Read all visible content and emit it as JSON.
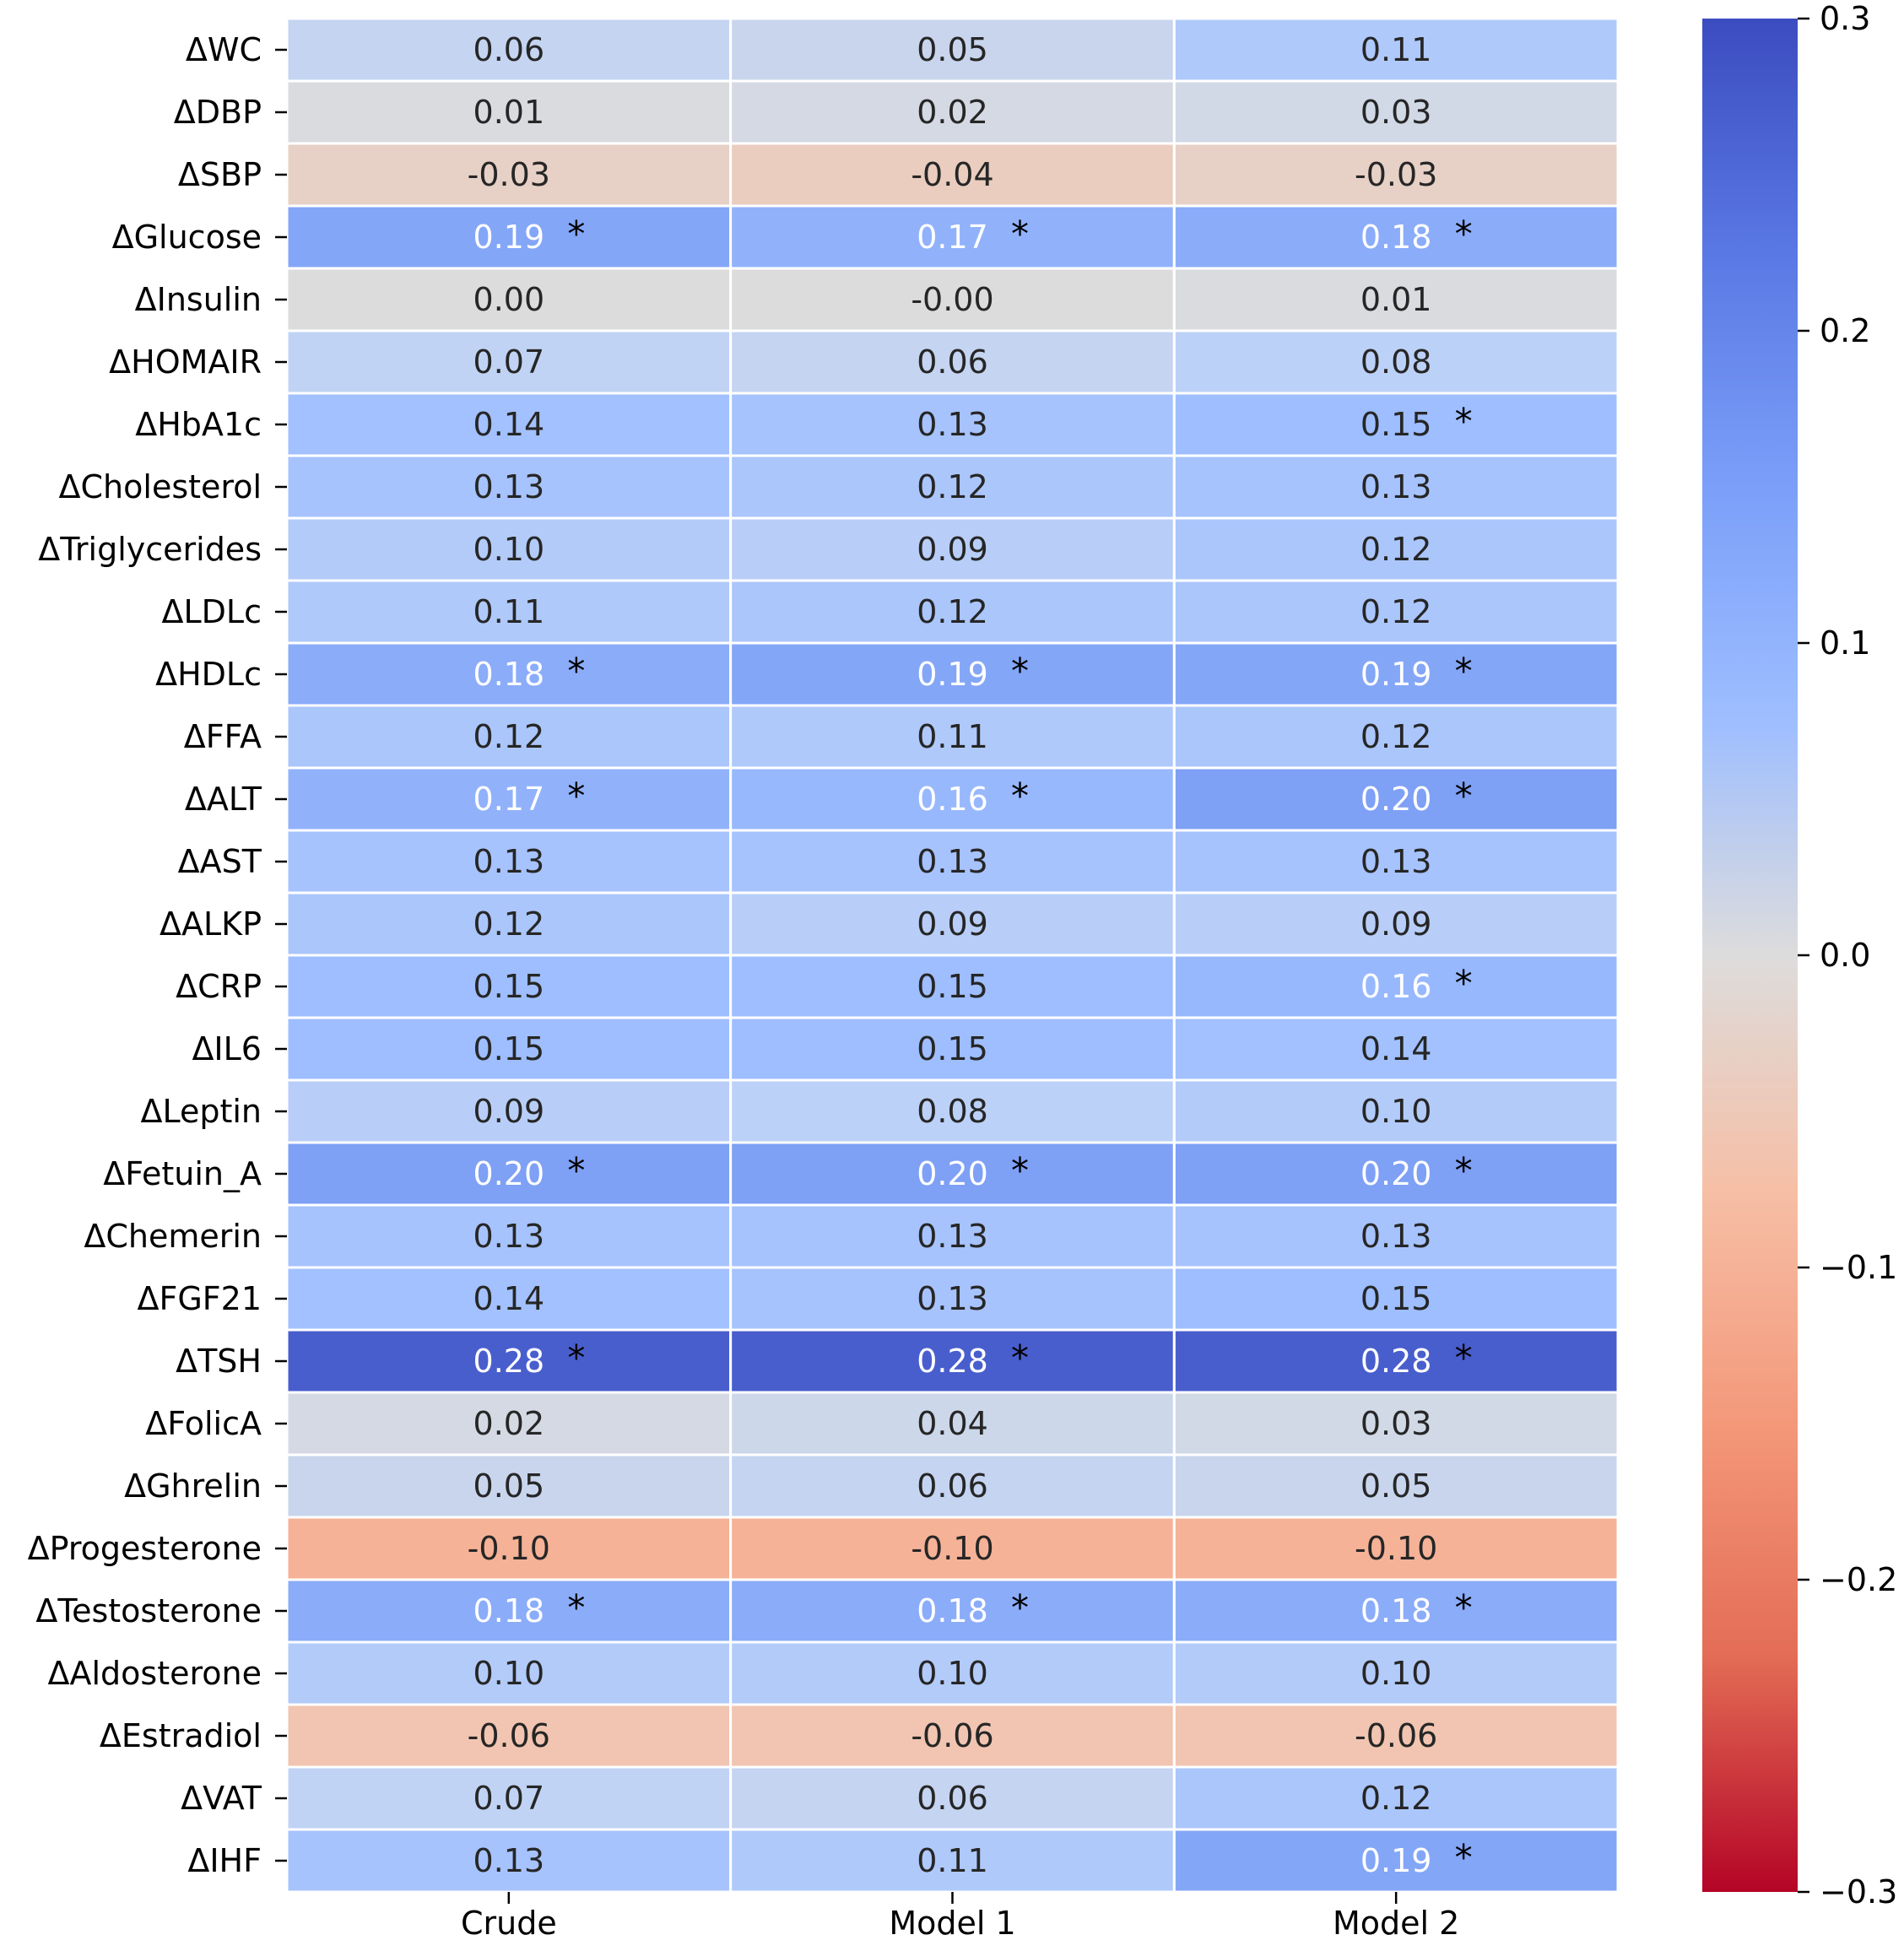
{
  "chart_data": {
    "type": "heatmap",
    "title": "",
    "xlabel": "",
    "ylabel": "",
    "columns": [
      "Crude",
      "Model 1",
      "Model 2"
    ],
    "rows": [
      {
        "label": "ΔWC",
        "values": [
          "0.06",
          "0.05",
          "0.11"
        ],
        "sig": [
          false,
          false,
          false
        ]
      },
      {
        "label": "ΔDBP",
        "values": [
          "0.01",
          "0.02",
          "0.03"
        ],
        "sig": [
          false,
          false,
          false
        ]
      },
      {
        "label": "ΔSBP",
        "values": [
          "-0.03",
          "-0.04",
          "-0.03"
        ],
        "sig": [
          false,
          false,
          false
        ]
      },
      {
        "label": "ΔGlucose",
        "values": [
          "0.19",
          "0.17",
          "0.18"
        ],
        "sig": [
          true,
          true,
          true
        ]
      },
      {
        "label": "ΔInsulin",
        "values": [
          "0.00",
          "-0.00",
          "0.01"
        ],
        "sig": [
          false,
          false,
          false
        ]
      },
      {
        "label": "ΔHOMAIR",
        "values": [
          "0.07",
          "0.06",
          "0.08"
        ],
        "sig": [
          false,
          false,
          false
        ]
      },
      {
        "label": "ΔHbA1c",
        "values": [
          "0.14",
          "0.13",
          "0.15"
        ],
        "sig": [
          false,
          false,
          true
        ]
      },
      {
        "label": "ΔCholesterol",
        "values": [
          "0.13",
          "0.12",
          "0.13"
        ],
        "sig": [
          false,
          false,
          false
        ]
      },
      {
        "label": "ΔTriglycerides",
        "values": [
          "0.10",
          "0.09",
          "0.12"
        ],
        "sig": [
          false,
          false,
          false
        ]
      },
      {
        "label": "ΔLDLc",
        "values": [
          "0.11",
          "0.12",
          "0.12"
        ],
        "sig": [
          false,
          false,
          false
        ]
      },
      {
        "label": "ΔHDLc",
        "values": [
          "0.18",
          "0.19",
          "0.19"
        ],
        "sig": [
          true,
          true,
          true
        ]
      },
      {
        "label": "ΔFFA",
        "values": [
          "0.12",
          "0.11",
          "0.12"
        ],
        "sig": [
          false,
          false,
          false
        ]
      },
      {
        "label": "ΔALT",
        "values": [
          "0.17",
          "0.16",
          "0.20"
        ],
        "sig": [
          true,
          true,
          true
        ]
      },
      {
        "label": "ΔAST",
        "values": [
          "0.13",
          "0.13",
          "0.13"
        ],
        "sig": [
          false,
          false,
          false
        ]
      },
      {
        "label": "ΔALKP",
        "values": [
          "0.12",
          "0.09",
          "0.09"
        ],
        "sig": [
          false,
          false,
          false
        ]
      },
      {
        "label": "ΔCRP",
        "values": [
          "0.15",
          "0.15",
          "0.16"
        ],
        "sig": [
          false,
          false,
          true
        ]
      },
      {
        "label": "ΔIL6",
        "values": [
          "0.15",
          "0.15",
          "0.14"
        ],
        "sig": [
          false,
          false,
          false
        ]
      },
      {
        "label": "ΔLeptin",
        "values": [
          "0.09",
          "0.08",
          "0.10"
        ],
        "sig": [
          false,
          false,
          false
        ]
      },
      {
        "label": "ΔFetuin_A",
        "values": [
          "0.20",
          "0.20",
          "0.20"
        ],
        "sig": [
          true,
          true,
          true
        ]
      },
      {
        "label": "ΔChemerin",
        "values": [
          "0.13",
          "0.13",
          "0.13"
        ],
        "sig": [
          false,
          false,
          false
        ]
      },
      {
        "label": "ΔFGF21",
        "values": [
          "0.14",
          "0.13",
          "0.15"
        ],
        "sig": [
          false,
          false,
          false
        ]
      },
      {
        "label": "ΔTSH",
        "values": [
          "0.28",
          "0.28",
          "0.28"
        ],
        "sig": [
          true,
          true,
          true
        ]
      },
      {
        "label": "ΔFolicA",
        "values": [
          "0.02",
          "0.04",
          "0.03"
        ],
        "sig": [
          false,
          false,
          false
        ]
      },
      {
        "label": "ΔGhrelin",
        "values": [
          "0.05",
          "0.06",
          "0.05"
        ],
        "sig": [
          false,
          false,
          false
        ]
      },
      {
        "label": "ΔProgesterone",
        "values": [
          "-0.10",
          "-0.10",
          "-0.10"
        ],
        "sig": [
          false,
          false,
          false
        ]
      },
      {
        "label": "ΔTestosterone",
        "values": [
          "0.18",
          "0.18",
          "0.18"
        ],
        "sig": [
          true,
          true,
          true
        ]
      },
      {
        "label": "ΔAldosterone",
        "values": [
          "0.10",
          "0.10",
          "0.10"
        ],
        "sig": [
          false,
          false,
          false
        ]
      },
      {
        "label": "ΔEstradiol",
        "values": [
          "-0.06",
          "-0.06",
          "-0.06"
        ],
        "sig": [
          false,
          false,
          false
        ]
      },
      {
        "label": "ΔVAT",
        "values": [
          "0.07",
          "0.06",
          "0.12"
        ],
        "sig": [
          false,
          false,
          false
        ]
      },
      {
        "label": "ΔIHF",
        "values": [
          "0.13",
          "0.11",
          "0.19"
        ],
        "sig": [
          false,
          false,
          true
        ]
      }
    ],
    "significance_marker": "*",
    "colorbar": {
      "range": [
        -0.3,
        0.3
      ],
      "ticks": [
        0.3,
        0.2,
        0.1,
        0.0,
        -0.1,
        -0.2,
        -0.3
      ],
      "tick_labels": [
        "0.3",
        "0.2",
        "0.1",
        "0.0",
        "−0.1",
        "−0.2",
        "−0.3"
      ],
      "colormap": "coolwarm_r"
    }
  }
}
